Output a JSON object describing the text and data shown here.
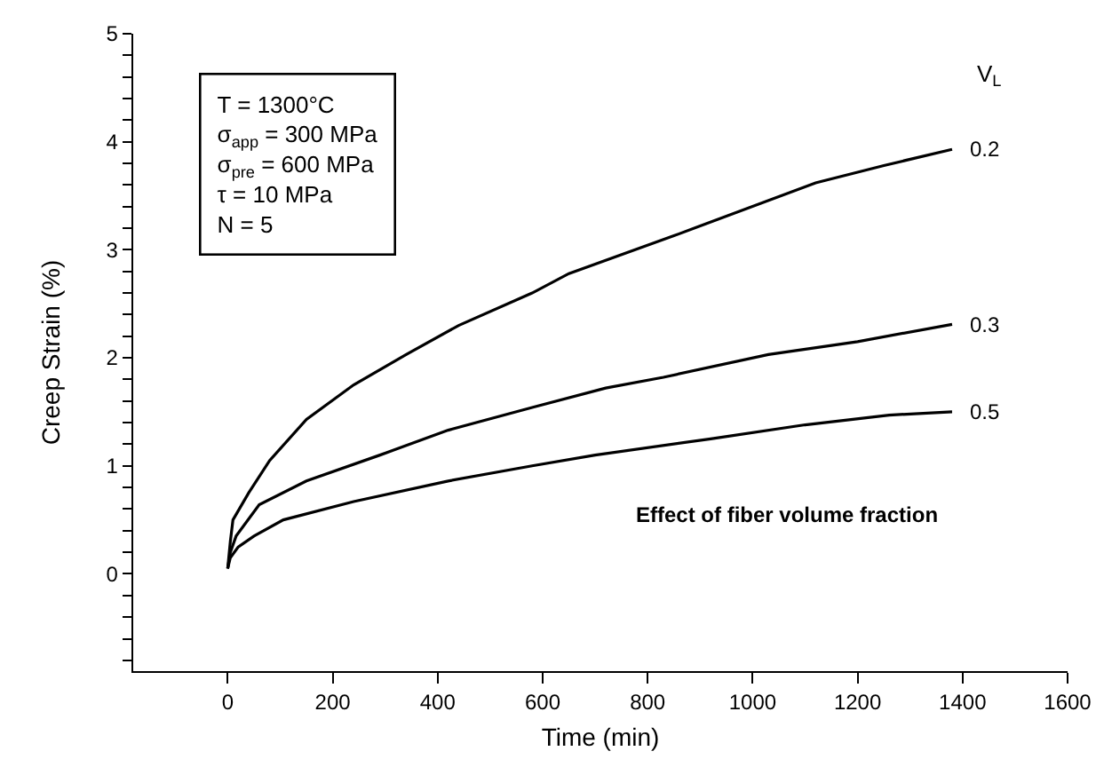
{
  "chart_data": {
    "type": "line",
    "xlabel": "Time (min)",
    "ylabel": "Creep Strain (%)",
    "legend_title": "V$_{L}$",
    "xlim": [
      -180,
      1600
    ],
    "xticks": [
      0,
      200,
      400,
      600,
      800,
      1000,
      1200,
      1400,
      1600
    ],
    "ylim": [
      -0.9,
      5
    ],
    "yticks": [
      {
        "value": -0.8,
        "label": null
      },
      {
        "value": -0.6,
        "label": null
      },
      {
        "value": -0.4,
        "label": null
      },
      {
        "value": -0.2,
        "label": null
      },
      0,
      {
        "value": 0.2,
        "label": null
      },
      {
        "value": 0.4,
        "label": null
      },
      {
        "value": 0.6,
        "label": null
      },
      {
        "value": 0.8,
        "label": null
      },
      1,
      {
        "value": 1.2,
        "label": null
      },
      {
        "value": 1.4,
        "label": null
      },
      {
        "value": 1.6,
        "label": null
      },
      {
        "value": 1.8,
        "label": null
      },
      2,
      {
        "value": 2.2,
        "label": null
      },
      {
        "value": 2.4,
        "label": null
      },
      {
        "value": 2.6,
        "label": null
      },
      {
        "value": 2.8,
        "label": null
      },
      3,
      {
        "value": 3.2,
        "label": null
      },
      {
        "value": 3.4,
        "label": null
      },
      {
        "value": 3.6,
        "label": null
      },
      {
        "value": 3.8,
        "label": null
      },
      4,
      {
        "value": 4.2,
        "label": null
      },
      {
        "value": 4.4,
        "label": null
      },
      {
        "value": 4.6,
        "label": null
      },
      {
        "value": 4.8,
        "label": null
      },
      5
    ],
    "grid": false,
    "legend": false,
    "marker": "none",
    "line_style": "solid",
    "annotations": [
      "T = 1300°C\nσ$_{app}$ = 300 MPa\nσ$_{pre}$ = 600 MPa\nτ = 10 MPa\nN = 5",
      "Effect of fiber volume fraction"
    ],
    "series": [
      {
        "name": "0.2",
        "color": "#000000",
        "x": [
          0,
          5,
          10,
          40,
          80,
          150,
          240,
          340,
          440,
          580,
          650,
          850,
          1120,
          1250,
          1380
        ],
        "values": [
          0.05,
          0.3,
          0.5,
          0.75,
          1.05,
          1.43,
          1.75,
          2.03,
          2.3,
          2.6,
          2.78,
          3.13,
          3.62,
          3.78,
          3.93
        ]
      },
      {
        "name": "0.3",
        "color": "#000000",
        "x": [
          0,
          5,
          16,
          60,
          150,
          290,
          420,
          580,
          720,
          830,
          1030,
          1200,
          1380
        ],
        "values": [
          0.05,
          0.2,
          0.35,
          0.64,
          0.86,
          1.1,
          1.33,
          1.54,
          1.72,
          1.82,
          2.03,
          2.15,
          2.31
        ]
      },
      {
        "name": "0.5",
        "color": "#000000",
        "x": [
          0,
          5,
          20,
          50,
          106,
          240,
          420,
          580,
          700,
          920,
          1100,
          1260,
          1380
        ],
        "values": [
          0.05,
          0.15,
          0.25,
          0.35,
          0.5,
          0.67,
          0.86,
          1.0,
          1.1,
          1.25,
          1.38,
          1.47,
          1.5
        ]
      }
    ]
  }
}
